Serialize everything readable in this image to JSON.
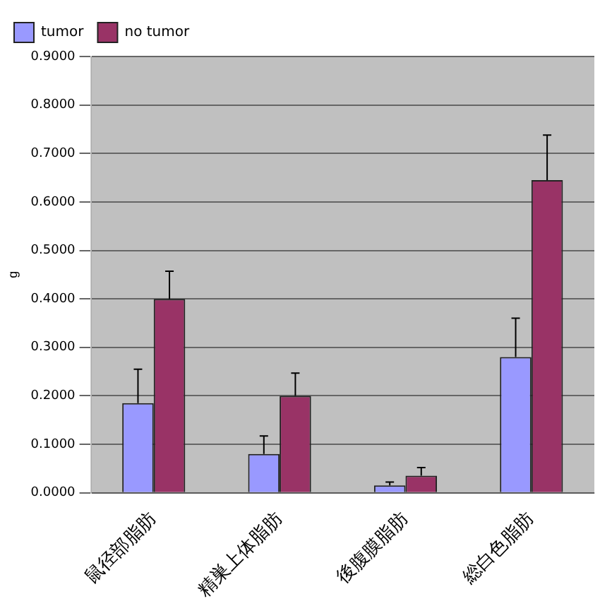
{
  "chart_data": {
    "type": "bar",
    "ylabel": "g",
    "categories": [
      "鼠径部脂肪",
      "精巣上体脂肪",
      "後腹膜脂肪",
      "総白色脂肪"
    ],
    "series": [
      {
        "name": "tumor",
        "color": "#9999ff",
        "values": [
          0.185,
          0.08,
          0.015,
          0.28
        ],
        "errors": [
          [
            0.185,
            0.255
          ],
          [
            0.08,
            0.117
          ],
          [
            0.015,
            0.022
          ],
          [
            0.28,
            0.36
          ]
        ]
      },
      {
        "name": "no tumor",
        "color": "#993366",
        "values": [
          0.4,
          0.2,
          0.035,
          0.645
        ],
        "errors": [
          [
            0.4,
            0.457
          ],
          [
            0.2,
            0.247
          ],
          [
            0.035,
            0.052
          ],
          [
            0.645,
            0.738
          ]
        ]
      }
    ],
    "ylim": [
      0,
      0.9
    ],
    "yticks": [
      {
        "value": 0,
        "label": "0.0000"
      },
      {
        "value": 0.1,
        "label": "0.1000"
      },
      {
        "value": 0.2,
        "label": "0.2000"
      },
      {
        "value": 0.3,
        "label": "0.3000"
      },
      {
        "value": 0.4,
        "label": "0.4000"
      },
      {
        "value": 0.5,
        "label": "0.5000"
      },
      {
        "value": 0.6,
        "label": "0.6000"
      },
      {
        "value": 0.7,
        "label": "0.7000"
      },
      {
        "value": 0.8,
        "label": "0.8000"
      },
      {
        "value": 0.9,
        "label": "0.9000"
      }
    ],
    "grid": "y",
    "legend": "top left"
  }
}
